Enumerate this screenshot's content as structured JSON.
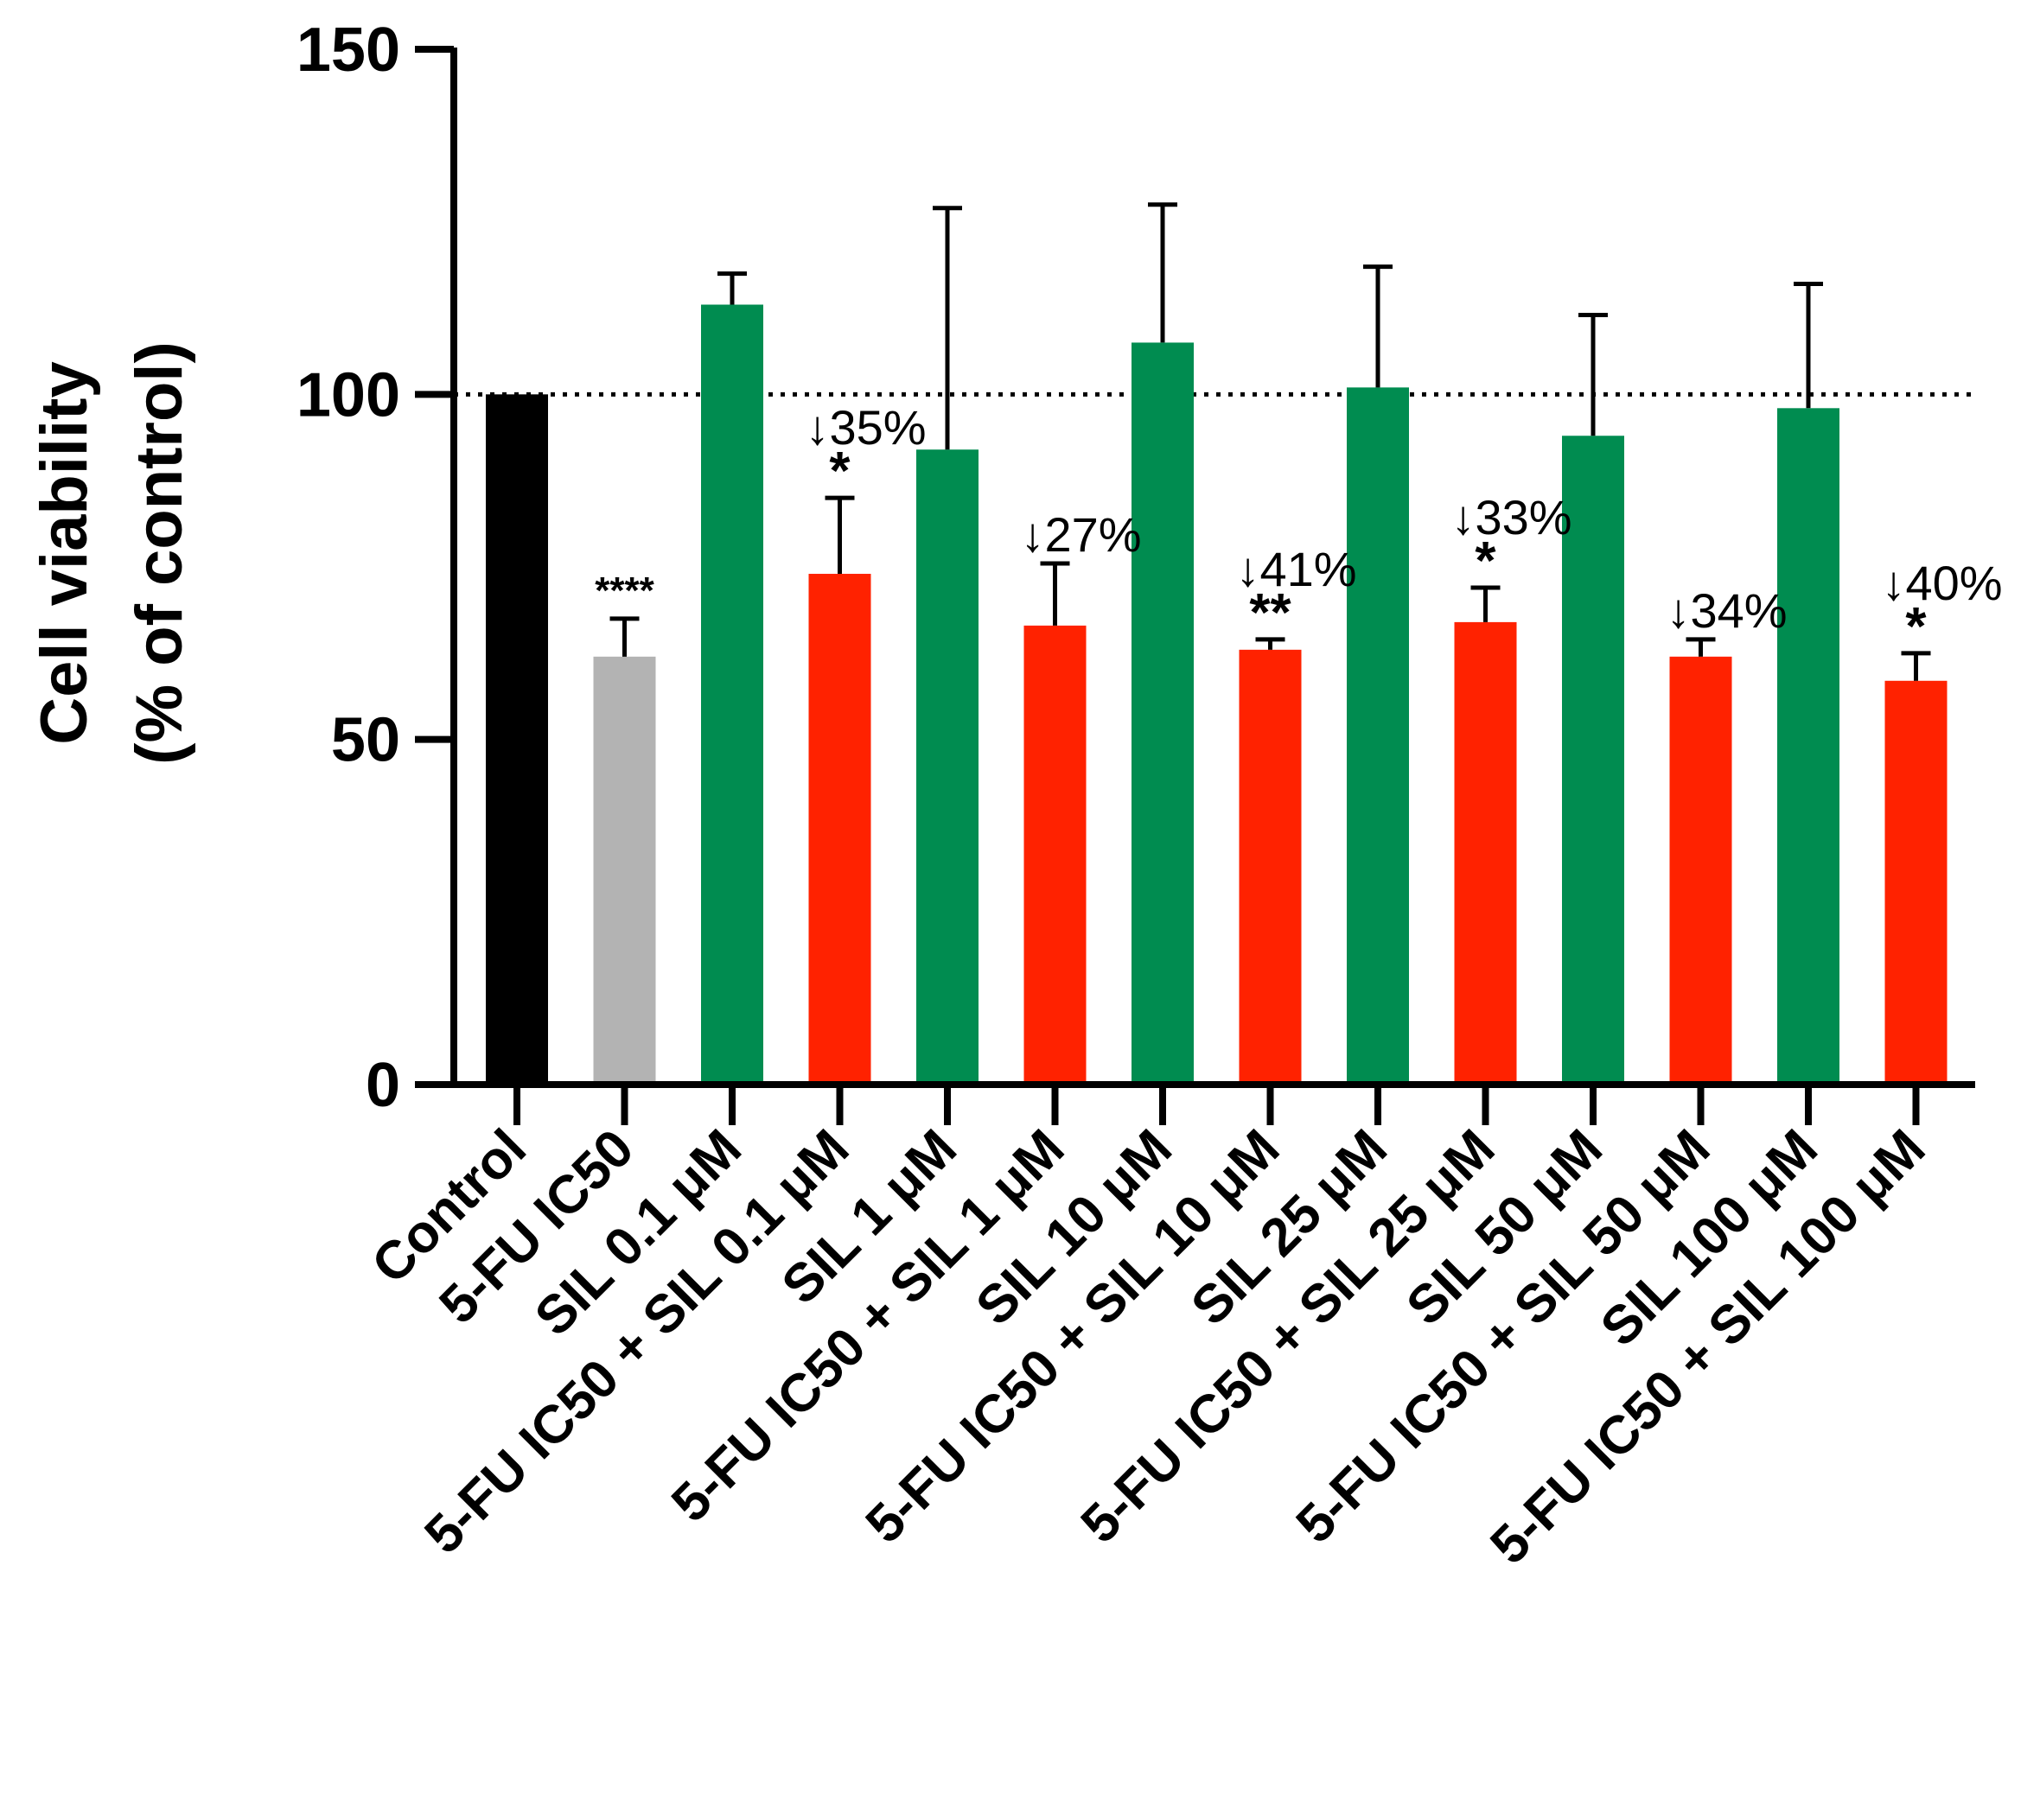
{
  "chart_data": {
    "type": "bar",
    "title": "",
    "xlabel": "",
    "ylabel": "Cell viability",
    "ylabel_line2": "(% of control)",
    "ylim": [
      0,
      150
    ],
    "yticks": [
      0,
      50,
      100,
      150
    ],
    "reference_line": 100,
    "categories": [
      "Control",
      "5-FU IC50",
      "SIL 0.1 μM",
      "5-FU IC50 + SIL 0.1 μM",
      "SIL 1 μM",
      "5-FU IC50 + SIL 1 μM",
      "SIL 10 μM",
      "5-FU IC50 + SIL 10 μM",
      "SIL 25 μM",
      "5-FU IC50 + SIL 25 μM",
      "SIL 50 μM",
      "5-FU IC50 + SIL 50 μM",
      "SIL 100 μM",
      "5-FU IC50 + SIL 100 μM"
    ],
    "values": [
      100,
      62,
      113,
      74,
      92,
      66.5,
      107.5,
      63,
      101,
      67,
      94,
      62,
      98,
      58.5
    ],
    "errors": [
      0,
      5.5,
      4.5,
      11,
      35,
      9,
      20,
      1.5,
      17.5,
      5,
      17.5,
      2.5,
      18,
      4
    ],
    "colors": [
      "#000000",
      "#b3b3b3",
      "#008c50",
      "#ff2200",
      "#008c50",
      "#ff2200",
      "#008c50",
      "#ff2200",
      "#008c50",
      "#ff2200",
      "#008c50",
      "#ff2200",
      "#008c50",
      "#ff2200"
    ],
    "significance": [
      "",
      "****",
      "",
      "*",
      "",
      "",
      "",
      "**",
      "",
      "*",
      "",
      "",
      "",
      "*"
    ],
    "reduction_labels": [
      "",
      "",
      "",
      "35%",
      "",
      "27%",
      "",
      "41%",
      "",
      "33%",
      "",
      "34%",
      "",
      "40%"
    ],
    "arrow_symbol": "↓"
  }
}
